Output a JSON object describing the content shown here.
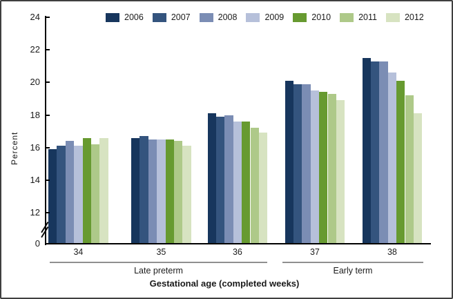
{
  "chart_data": {
    "type": "bar",
    "title": "",
    "ylabel": "Percent",
    "xlabel": "Gestational age (completed weeks)",
    "categories": [
      "34",
      "35",
      "36",
      "37",
      "38"
    ],
    "series": [
      {
        "name": "2006",
        "color": "#17365d",
        "values": [
          15.9,
          16.6,
          18.1,
          20.1,
          21.5
        ]
      },
      {
        "name": "2007",
        "color": "#34547e",
        "values": [
          16.1,
          16.7,
          17.9,
          19.9,
          21.3
        ]
      },
      {
        "name": "2008",
        "color": "#7b8db4",
        "values": [
          16.4,
          16.5,
          18.0,
          19.9,
          21.3
        ]
      },
      {
        "name": "2009",
        "color": "#b6c0da",
        "values": [
          16.1,
          16.5,
          17.6,
          19.5,
          20.6
        ]
      },
      {
        "name": "2010",
        "color": "#679a30",
        "values": [
          16.6,
          16.5,
          17.6,
          19.4,
          20.1
        ]
      },
      {
        "name": "2011",
        "color": "#aec989",
        "values": [
          16.2,
          16.4,
          17.2,
          19.3,
          19.2
        ]
      },
      {
        "name": "2012",
        "color": "#d7e3c1",
        "values": [
          16.6,
          16.1,
          16.9,
          18.9,
          18.1
        ]
      }
    ],
    "y_ticks": [
      0,
      12,
      14,
      16,
      18,
      20,
      22,
      24
    ],
    "ylim": [
      0,
      24
    ],
    "y_axis_break": {
      "between": [
        0,
        12
      ]
    },
    "grid": "off",
    "legend_position": "top",
    "category_groups": [
      {
        "label": "Late preterm",
        "categories": [
          "34",
          "35",
          "36"
        ]
      },
      {
        "label": "Early term",
        "categories": [
          "37",
          "38"
        ]
      }
    ]
  }
}
